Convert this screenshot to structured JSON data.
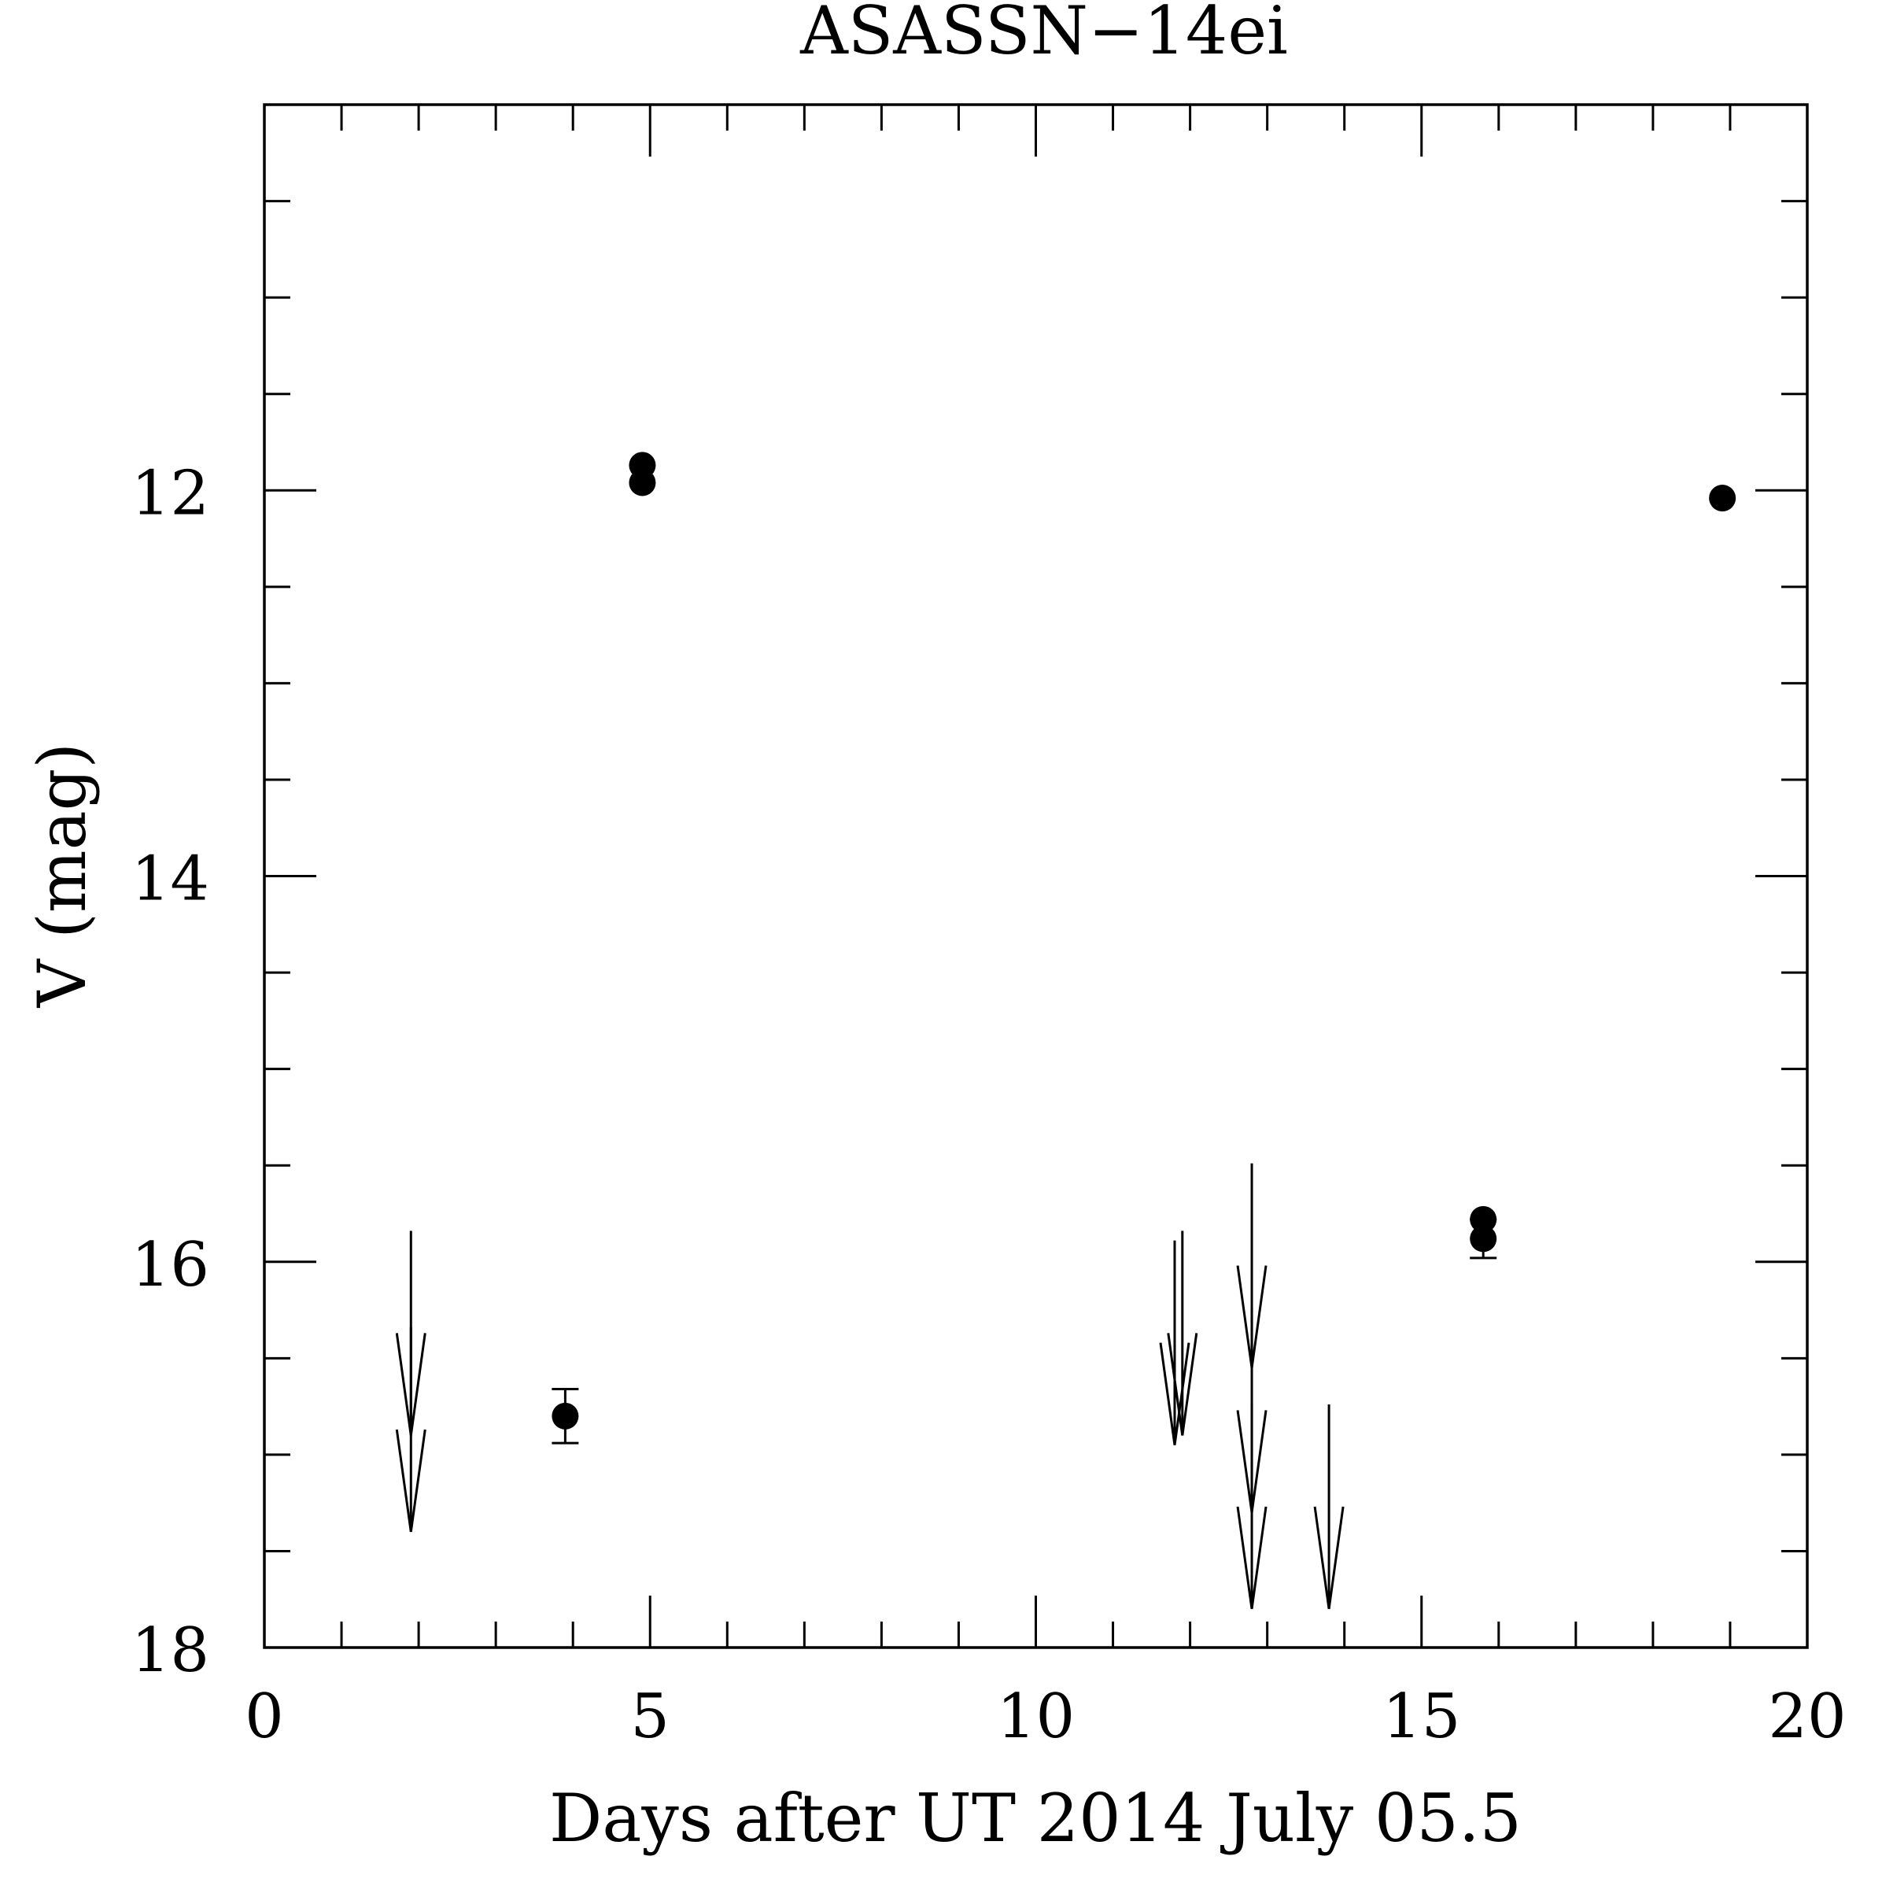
{
  "chart_data": {
    "type": "scatter",
    "title": "ASASSN−14ei",
    "xlabel": "Days after UT 2014 July 05.5",
    "ylabel": "V (mag)",
    "xlim": [
      0,
      20
    ],
    "ylim": [
      18,
      10
    ],
    "y_inverted": true,
    "x_major_ticks": [
      0,
      5,
      10,
      15,
      20
    ],
    "x_tick_labels": [
      "0",
      "5",
      "10",
      "15",
      "20"
    ],
    "x_minor_step": 1,
    "y_major_ticks": [
      12,
      14,
      16,
      18
    ],
    "y_tick_labels": [
      "12",
      "14",
      "16",
      "18"
    ],
    "y_minor_step": 0.5,
    "grid": false,
    "legend": "none",
    "marker_color": "#000000",
    "series": [
      {
        "kind": "detections",
        "points": [
          {
            "x": 3.9,
            "y": 16.8,
            "err": 0.14
          },
          {
            "x": 4.9,
            "y": 11.87,
            "err": 0
          },
          {
            "x": 4.9,
            "y": 11.96,
            "err": 0
          },
          {
            "x": 15.8,
            "y": 15.78,
            "err": 0
          },
          {
            "x": 15.8,
            "y": 15.88,
            "err": 0.1
          },
          {
            "x": 18.9,
            "y": 12.04,
            "err": 0
          }
        ]
      },
      {
        "kind": "upper_limits",
        "points": [
          {
            "x": 1.9,
            "y": 16.9
          },
          {
            "x": 1.9,
            "y": 17.4
          },
          {
            "x": 11.8,
            "y": 16.95
          },
          {
            "x": 11.9,
            "y": 16.9
          },
          {
            "x": 12.8,
            "y": 16.55
          },
          {
            "x": 12.8,
            "y": 17.3
          },
          {
            "x": 12.8,
            "y": 17.8
          },
          {
            "x": 13.8,
            "y": 17.8
          }
        ]
      }
    ]
  }
}
